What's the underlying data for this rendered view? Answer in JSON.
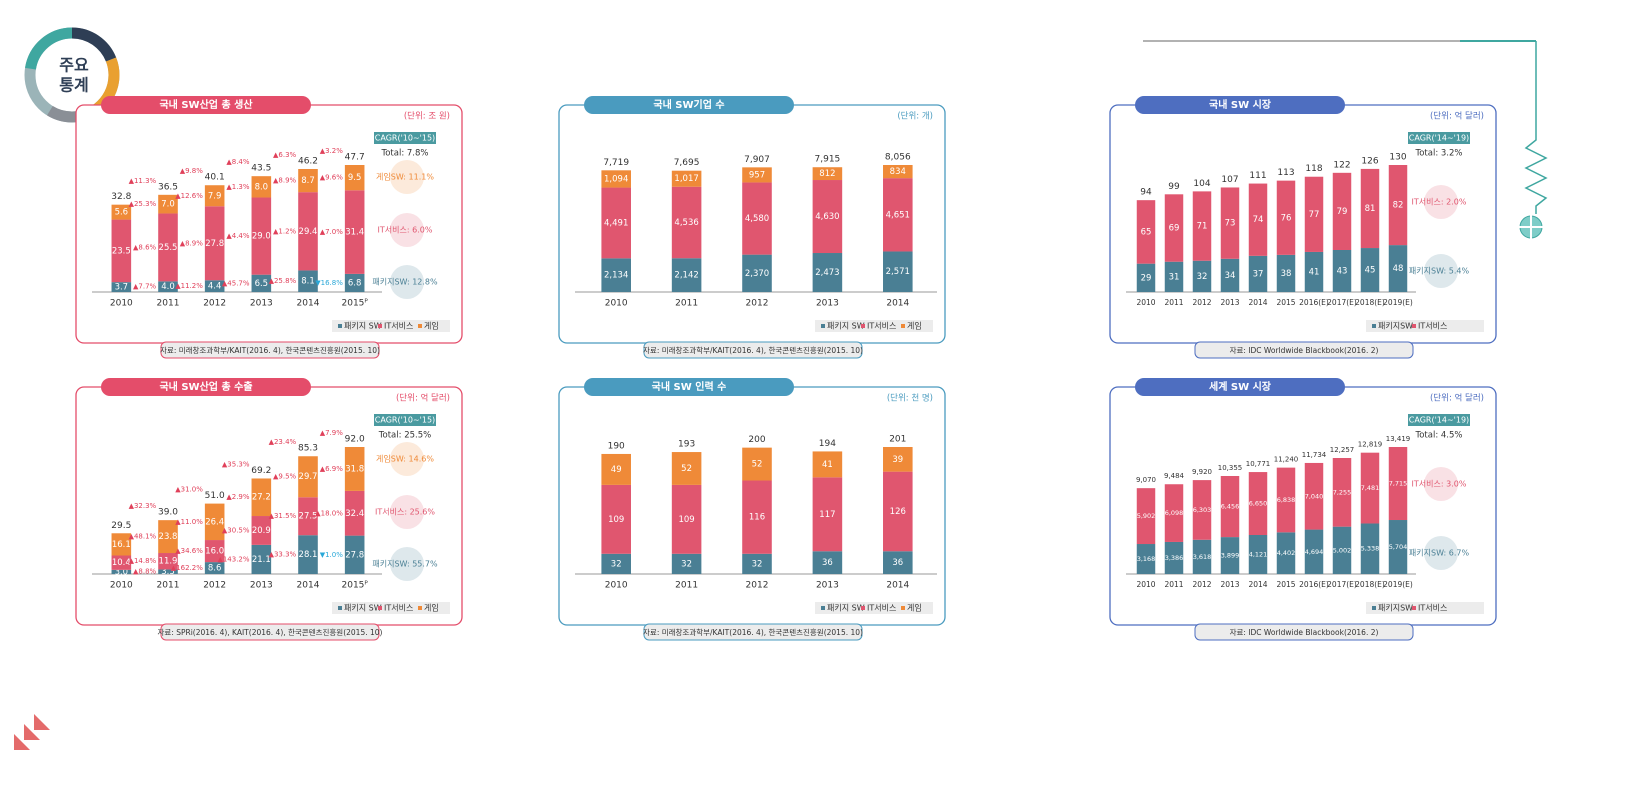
{
  "header": {
    "title_lines": [
      "주요",
      "통계"
    ]
  },
  "chart_data": [
    {
      "type": "bar",
      "title": "국내 SW산업 총 생산",
      "unit": "(단위: 조 원)",
      "panel_color": "#e44d6a",
      "categories": [
        "2010",
        "2011",
        "2012",
        "2013",
        "2014",
        "2015ᴾ"
      ],
      "series": [
        {
          "name": "패키지 SW",
          "color": "#4a7f94",
          "values": [
            3.7,
            4.0,
            4.4,
            6.5,
            8.1,
            6.8
          ],
          "value_labels": [
            "3.7",
            "4.0",
            "4.4",
            "6.5",
            "8.1",
            "6.8"
          ],
          "growth_labels": [
            "▲7.7%",
            "▲11.2%",
            "▲45.7%",
            "▲25.8%",
            "▼16.8%"
          ]
        },
        {
          "name": "IT서비스",
          "color": "#e0566f",
          "values": [
            23.5,
            25.5,
            27.8,
            29.0,
            29.4,
            31.4
          ],
          "value_labels": [
            "23.5",
            "25.5",
            "27.8",
            "29.0",
            "29.4",
            "31.4"
          ],
          "growth_labels": [
            "▲8.6%",
            "▲8.9%",
            "▲4.4%",
            "▲1.2%",
            "▲7.0%"
          ]
        },
        {
          "name": "게임",
          "color": "#ef8a38",
          "values": [
            5.6,
            7.0,
            7.9,
            8.0,
            8.7,
            9.5
          ],
          "value_labels": [
            "5.6",
            "7.0",
            "7.9",
            "8.0",
            "8.7",
            "9.5"
          ],
          "growth_labels": [
            "▲25.3%",
            "▲12.6%",
            "▲1.3%",
            "▲8.9%",
            "▲9.6%"
          ]
        }
      ],
      "totals": [
        32.8,
        36.5,
        40.1,
        43.5,
        46.2,
        47.7
      ],
      "total_growth_labels": [
        "▲11.3%",
        "▲9.8%",
        "▲8.4%",
        "▲6.3%",
        "▲3.2%"
      ],
      "cagr": {
        "title": "CAGR('10~'15)",
        "total": "Total: 7.8%",
        "items": [
          "게임SW: 11.1%",
          "IT서비스: 6.0%",
          "패키지SW: 12.8%"
        ]
      },
      "source": "자료: 미래창조과학부/KAIT(2016. 4), 한국콘텐츠진흥원(2015. 10)"
    },
    {
      "type": "bar",
      "title": "국내 SW기업 수",
      "unit": "(단위: 개)",
      "panel_color": "#4a9bbf",
      "categories": [
        "2010",
        "2011",
        "2012",
        "2013",
        "2014"
      ],
      "series": [
        {
          "name": "패키지 SW",
          "color": "#4a7f94",
          "values": [
            2134,
            2142,
            2370,
            2473,
            2571
          ],
          "value_labels": [
            "2,134",
            "2,142",
            "2,370",
            "2,473",
            "2,571"
          ]
        },
        {
          "name": "IT서비스",
          "color": "#e0566f",
          "values": [
            4491,
            4536,
            4580,
            4630,
            4651
          ],
          "value_labels": [
            "4,491",
            "4,536",
            "4,580",
            "4,630",
            "4,651"
          ]
        },
        {
          "name": "게임",
          "color": "#ef8a38",
          "values": [
            1094,
            1017,
            957,
            812,
            834
          ],
          "value_labels": [
            "1,094",
            "1,017",
            "957",
            "812",
            "834"
          ]
        }
      ],
      "totals": [
        7719,
        7695,
        7907,
        7915,
        8056
      ],
      "total_labels": [
        "7,719",
        "7,695",
        "7,907",
        "7,915",
        "8,056"
      ],
      "source": "자료: 미래창조과학부/KAIT(2016. 4), 한국콘텐츠진흥원(2015. 10)"
    },
    {
      "type": "bar",
      "title": "국내 SW 시장",
      "unit": "(단위: 억 달러)",
      "panel_color": "#4e6ec0",
      "categories": [
        "2010",
        "2011",
        "2012",
        "2013",
        "2014",
        "2015",
        "2016(E)",
        "2017(E)",
        "2018(E)",
        "2019(E)"
      ],
      "series": [
        {
          "name": "패키지SW",
          "color": "#4a7f94",
          "values": [
            29,
            31,
            32,
            34,
            37,
            38,
            41,
            43,
            45,
            48
          ]
        },
        {
          "name": "IT서비스",
          "color": "#e0566f",
          "values": [
            65,
            69,
            71,
            73,
            74,
            76,
            77,
            79,
            81,
            82
          ]
        }
      ],
      "totals": [
        94,
        99,
        104,
        107,
        111,
        113,
        118,
        122,
        126,
        130
      ],
      "cagr": {
        "title": "CAGR('14~'19)",
        "total": "Total: 3.2%",
        "items": [
          "IT서비스: 2.0%",
          "패키지SW: 5.4%"
        ]
      },
      "source": "자료: IDC Worldwide Blackbook(2016. 2)"
    },
    {
      "type": "bar",
      "title": "국내 SW산업 총 수출",
      "unit": "(단위: 억 달러)",
      "panel_color": "#e44d6a",
      "categories": [
        "2010",
        "2011",
        "2012",
        "2013",
        "2014",
        "2015ᴾ"
      ],
      "series": [
        {
          "name": "패키지 SW",
          "color": "#4a7f94",
          "values": [
            3.0,
            3.3,
            8.6,
            21.1,
            28.1,
            27.8
          ],
          "value_labels": [
            "3.0",
            "3.3",
            "8.6",
            "21.1",
            "28.1",
            "27.8"
          ],
          "growth_labels": [
            "▲8.8%",
            "▲162.2%",
            "▲143.2%",
            "▲33.3%",
            "▼1.0%"
          ]
        },
        {
          "name": "IT서비스",
          "color": "#e0566f",
          "values": [
            10.4,
            11.9,
            16.0,
            20.9,
            27.5,
            32.4
          ],
          "value_labels": [
            "10.4",
            "11.9",
            "16.0",
            "20.9",
            "27.5",
            "32.4"
          ],
          "growth_labels": [
            "▲14.8%",
            "▲34.6%",
            "▲30.5%",
            "▲31.5%",
            "▲18.0%"
          ]
        },
        {
          "name": "게임",
          "color": "#ef8a38",
          "values": [
            16.1,
            23.8,
            26.4,
            27.2,
            29.7,
            31.8
          ],
          "value_labels": [
            "16.1",
            "23.8",
            "26.4",
            "27.2",
            "29.7",
            "31.8"
          ],
          "growth_labels": [
            "▲48.1%",
            "▲11.0%",
            "▲2.9%",
            "▲9.5%",
            "▲6.9%"
          ]
        }
      ],
      "totals": [
        29.5,
        39.0,
        51.0,
        69.2,
        85.3,
        92.0
      ],
      "total_labels": [
        "29.5",
        "39.0",
        "51.0",
        "69.2",
        "85.3",
        "92.0"
      ],
      "total_growth_labels": [
        "▲32.3%",
        "▲31.0%",
        "▲35.3%",
        "▲23.4%",
        "▲7.9%"
      ],
      "cagr": {
        "title": "CAGR('10~'15)",
        "total": "Total: 25.5%",
        "items": [
          "게임SW: 14.6%",
          "IT서비스: 25.6%",
          "패키지SW: 55.7%"
        ]
      },
      "source": "자료: SPRi(2016. 4), KAIT(2016. 4), 한국콘텐츠진흥원(2015. 10)"
    },
    {
      "type": "bar",
      "title": "국내 SW 인력 수",
      "unit": "(단위: 천 명)",
      "panel_color": "#4a9bbf",
      "categories": [
        "2010",
        "2011",
        "2012",
        "2013",
        "2014"
      ],
      "series": [
        {
          "name": "패키지 SW",
          "color": "#4a7f94",
          "values": [
            32,
            32,
            32,
            36,
            36
          ]
        },
        {
          "name": "IT서비스",
          "color": "#e0566f",
          "values": [
            109,
            109,
            116,
            117,
            126
          ]
        },
        {
          "name": "게임",
          "color": "#ef8a38",
          "values": [
            49,
            52,
            52,
            41,
            39
          ]
        }
      ],
      "totals": [
        190,
        193,
        200,
        194,
        201
      ],
      "source": "자료: 미래창조과학부/KAIT(2016. 4), 한국콘텐츠진흥원(2015. 10)"
    },
    {
      "type": "bar",
      "title": "세계 SW 시장",
      "unit": "(단위: 억 달러)",
      "panel_color": "#4e6ec0",
      "categories": [
        "2010",
        "2011",
        "2012",
        "2013",
        "2014",
        "2015",
        "2016(E)",
        "2017(E)",
        "2018(E)",
        "2019(E)"
      ],
      "series": [
        {
          "name": "패키지SW",
          "color": "#4a7f94",
          "values": [
            3168,
            3386,
            3618,
            3899,
            4121,
            4402,
            4694,
            5002,
            5338,
            5704
          ],
          "value_labels": [
            "3,168",
            "3,386",
            "3,618",
            "3,899",
            "4,121",
            "4,402",
            "4,694",
            "5,002",
            "5,338",
            "5,704"
          ]
        },
        {
          "name": "IT서비스",
          "color": "#e0566f",
          "values": [
            5902,
            6098,
            6303,
            6456,
            6650,
            6838,
            7040,
            7255,
            7481,
            7715
          ],
          "value_labels": [
            "5,902",
            "6,098",
            "6,303",
            "6,456",
            "6,650",
            "6,838",
            "7,040",
            "7,255",
            "7,481",
            "7,715"
          ]
        }
      ],
      "totals": [
        9070,
        9484,
        9920,
        10355,
        10771,
        11240,
        11734,
        12257,
        12819,
        13419
      ],
      "total_labels": [
        "9,070",
        "9,484",
        "9,920",
        "10,355",
        "10,771",
        "11,240",
        "11,734",
        "12,257",
        "12,819",
        "13,419"
      ],
      "cagr": {
        "title": "CAGR('14~'19)",
        "total": "Total: 4.5%",
        "items": [
          "IT서비스: 3.0%",
          "패키지SW: 6.7%"
        ]
      },
      "source": "자료: IDC Worldwide Blackbook(2016. 2)"
    }
  ]
}
